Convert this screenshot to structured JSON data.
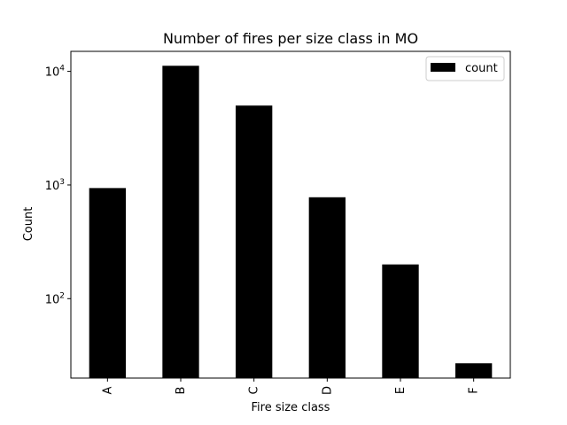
{
  "chart_data": {
    "type": "bar",
    "title": "Number of fires per size class in MO",
    "xlabel": "Fire size class",
    "ylabel": "Count",
    "categories": [
      "A",
      "B",
      "C",
      "D",
      "E",
      "F"
    ],
    "series": [
      {
        "name": "count",
        "values": [
          940,
          11200,
          5000,
          780,
          200,
          27
        ],
        "color": "#000000"
      }
    ],
    "yscale": "log",
    "ylim": [
      20,
      15000
    ],
    "yticks": [
      {
        "base": "10",
        "exp": "2",
        "value": 100
      },
      {
        "base": "10",
        "exp": "3",
        "value": 1000
      },
      {
        "base": "10",
        "exp": "4",
        "value": 10000
      }
    ],
    "grid": false,
    "legend_position": "top-right"
  }
}
